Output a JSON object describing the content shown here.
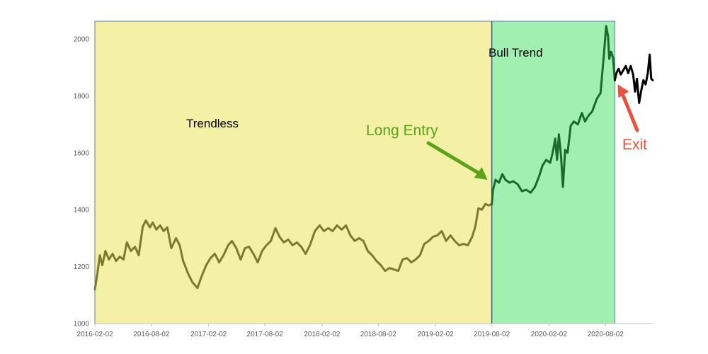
{
  "chart_data": {
    "type": "line",
    "title": "",
    "xlabel": "",
    "ylabel": "",
    "ylim": [
      1000,
      2050
    ],
    "y_ticks": [
      "1000",
      "1200",
      "1400",
      "1600",
      "1800",
      "2000"
    ],
    "x_ticks": [
      "2016-02-02",
      "2016-08-02",
      "2017-02-02",
      "2017-08-02",
      "2018-02-02",
      "2018-08-02",
      "2019-02-02",
      "2019-08-02",
      "2020-02-02",
      "2020-08-02"
    ],
    "x_range": [
      "2016-02-02",
      "2021-01-01"
    ],
    "grid": false,
    "regions": [
      {
        "label": "Trendless",
        "start": "2016-02-02",
        "end": "2019-08-02",
        "color": "#f4f0a6"
      },
      {
        "label": "Bull Trend",
        "start": "2019-08-02",
        "end": "2020-09-01",
        "color": "#a1f0b1"
      }
    ],
    "annotations": [
      {
        "text": "Long Entry",
        "color": "#5aa218",
        "point": [
          "2019-08-02",
          1490
        ]
      },
      {
        "text": "Exit",
        "color": "#e8513b",
        "point": [
          "2020-09-01",
          1855
        ]
      }
    ],
    "series": [
      {
        "segment": "trendless",
        "color": "#7c7a2e",
        "points": [
          [
            "2016-02-02",
            1120
          ],
          [
            "2016-02-10",
            1175
          ],
          [
            "2016-02-18",
            1240
          ],
          [
            "2016-02-26",
            1205
          ],
          [
            "2016-03-07",
            1255
          ],
          [
            "2016-03-18",
            1225
          ],
          [
            "2016-03-30",
            1245
          ],
          [
            "2016-04-10",
            1220
          ],
          [
            "2016-04-22",
            1235
          ],
          [
            "2016-05-04",
            1225
          ],
          [
            "2016-05-15",
            1285
          ],
          [
            "2016-05-28",
            1255
          ],
          [
            "2016-06-10",
            1270
          ],
          [
            "2016-06-22",
            1240
          ],
          [
            "2016-07-05",
            1340
          ],
          [
            "2016-07-15",
            1362
          ],
          [
            "2016-07-28",
            1338
          ],
          [
            "2016-08-06",
            1355
          ],
          [
            "2016-08-18",
            1330
          ],
          [
            "2016-08-30",
            1345
          ],
          [
            "2016-09-10",
            1325
          ],
          [
            "2016-09-22",
            1338
          ],
          [
            "2016-10-05",
            1265
          ],
          [
            "2016-10-20",
            1300
          ],
          [
            "2016-11-01",
            1275
          ],
          [
            "2016-11-12",
            1220
          ],
          [
            "2016-11-28",
            1175
          ],
          [
            "2016-12-12",
            1145
          ],
          [
            "2016-12-28",
            1125
          ],
          [
            "2017-01-10",
            1165
          ],
          [
            "2017-01-25",
            1205
          ],
          [
            "2017-02-08",
            1230
          ],
          [
            "2017-02-22",
            1245
          ],
          [
            "2017-03-08",
            1215
          ],
          [
            "2017-03-22",
            1240
          ],
          [
            "2017-04-06",
            1275
          ],
          [
            "2017-04-18",
            1290
          ],
          [
            "2017-05-02",
            1265
          ],
          [
            "2017-05-16",
            1225
          ],
          [
            "2017-05-30",
            1265
          ],
          [
            "2017-06-12",
            1270
          ],
          [
            "2017-06-26",
            1245
          ],
          [
            "2017-07-10",
            1215
          ],
          [
            "2017-07-24",
            1255
          ],
          [
            "2017-08-07",
            1275
          ],
          [
            "2017-08-21",
            1290
          ],
          [
            "2017-09-05",
            1335
          ],
          [
            "2017-09-18",
            1305
          ],
          [
            "2017-10-02",
            1285
          ],
          [
            "2017-10-16",
            1295
          ],
          [
            "2017-10-30",
            1275
          ],
          [
            "2017-11-13",
            1285
          ],
          [
            "2017-11-27",
            1270
          ],
          [
            "2017-12-11",
            1245
          ],
          [
            "2017-12-25",
            1275
          ],
          [
            "2018-01-10",
            1325
          ],
          [
            "2018-01-25",
            1345
          ],
          [
            "2018-02-08",
            1325
          ],
          [
            "2018-02-22",
            1335
          ],
          [
            "2018-03-08",
            1325
          ],
          [
            "2018-03-22",
            1345
          ],
          [
            "2018-04-06",
            1330
          ],
          [
            "2018-04-20",
            1345
          ],
          [
            "2018-05-04",
            1310
          ],
          [
            "2018-05-18",
            1290
          ],
          [
            "2018-06-01",
            1300
          ],
          [
            "2018-06-15",
            1290
          ],
          [
            "2018-06-29",
            1255
          ],
          [
            "2018-07-13",
            1240
          ],
          [
            "2018-07-27",
            1220
          ],
          [
            "2018-08-10",
            1205
          ],
          [
            "2018-08-24",
            1185
          ],
          [
            "2018-09-07",
            1195
          ],
          [
            "2018-09-21",
            1190
          ],
          [
            "2018-10-05",
            1185
          ],
          [
            "2018-10-19",
            1225
          ],
          [
            "2018-11-02",
            1230
          ],
          [
            "2018-11-16",
            1215
          ],
          [
            "2018-11-30",
            1225
          ],
          [
            "2018-12-14",
            1240
          ],
          [
            "2018-12-28",
            1280
          ],
          [
            "2019-01-11",
            1290
          ],
          [
            "2019-01-25",
            1305
          ],
          [
            "2019-02-08",
            1310
          ],
          [
            "2019-02-22",
            1325
          ],
          [
            "2019-03-08",
            1290
          ],
          [
            "2019-03-22",
            1310
          ],
          [
            "2019-04-05",
            1290
          ],
          [
            "2019-04-19",
            1275
          ],
          [
            "2019-05-03",
            1280
          ],
          [
            "2019-05-17",
            1275
          ],
          [
            "2019-05-31",
            1305
          ],
          [
            "2019-06-10",
            1340
          ],
          [
            "2019-06-20",
            1405
          ],
          [
            "2019-07-01",
            1400
          ],
          [
            "2019-07-12",
            1420
          ],
          [
            "2019-07-24",
            1415
          ],
          [
            "2019-08-02",
            1420
          ]
        ]
      },
      {
        "segment": "bull",
        "color": "#1a6a2e",
        "points": [
          [
            "2019-08-02",
            1420
          ],
          [
            "2019-08-06",
            1470
          ],
          [
            "2019-08-14",
            1505
          ],
          [
            "2019-08-25",
            1495
          ],
          [
            "2019-09-05",
            1525
          ],
          [
            "2019-09-15",
            1505
          ],
          [
            "2019-09-28",
            1495
          ],
          [
            "2019-10-10",
            1500
          ],
          [
            "2019-10-24",
            1490
          ],
          [
            "2019-11-07",
            1465
          ],
          [
            "2019-11-21",
            1470
          ],
          [
            "2019-12-05",
            1460
          ],
          [
            "2019-12-19",
            1480
          ],
          [
            "2020-01-02",
            1520
          ],
          [
            "2020-01-12",
            1555
          ],
          [
            "2020-01-24",
            1575
          ],
          [
            "2020-02-06",
            1565
          ],
          [
            "2020-02-14",
            1600
          ],
          [
            "2020-02-22",
            1650
          ],
          [
            "2020-02-28",
            1575
          ],
          [
            "2020-03-05",
            1665
          ],
          [
            "2020-03-12",
            1585
          ],
          [
            "2020-03-18",
            1480
          ],
          [
            "2020-03-25",
            1610
          ],
          [
            "2020-04-02",
            1600
          ],
          [
            "2020-04-12",
            1695
          ],
          [
            "2020-04-22",
            1710
          ],
          [
            "2020-05-05",
            1700
          ],
          [
            "2020-05-18",
            1740
          ],
          [
            "2020-05-28",
            1710
          ],
          [
            "2020-06-08",
            1730
          ],
          [
            "2020-06-20",
            1745
          ],
          [
            "2020-07-05",
            1790
          ],
          [
            "2020-07-17",
            1810
          ],
          [
            "2020-07-27",
            1935
          ],
          [
            "2020-08-04",
            2045
          ],
          [
            "2020-08-10",
            2010
          ],
          [
            "2020-08-14",
            1930
          ],
          [
            "2020-08-20",
            1955
          ],
          [
            "2020-08-26",
            1935
          ],
          [
            "2020-09-01",
            1855
          ]
        ]
      },
      {
        "segment": "after-exit",
        "color": "#000000",
        "points": [
          [
            "2020-09-01",
            1855
          ],
          [
            "2020-09-06",
            1880
          ],
          [
            "2020-09-13",
            1895
          ],
          [
            "2020-09-20",
            1875
          ],
          [
            "2020-09-28",
            1890
          ],
          [
            "2020-10-06",
            1905
          ],
          [
            "2020-10-14",
            1880
          ],
          [
            "2020-10-22",
            1905
          ],
          [
            "2020-10-30",
            1875
          ],
          [
            "2020-11-05",
            1815
          ],
          [
            "2020-11-11",
            1860
          ],
          [
            "2020-11-18",
            1775
          ],
          [
            "2020-11-25",
            1820
          ],
          [
            "2020-12-02",
            1855
          ],
          [
            "2020-12-09",
            1840
          ],
          [
            "2020-12-16",
            1880
          ],
          [
            "2020-12-22",
            1945
          ],
          [
            "2020-12-27",
            1860
          ],
          [
            "2021-01-01",
            1855
          ]
        ]
      }
    ]
  }
}
